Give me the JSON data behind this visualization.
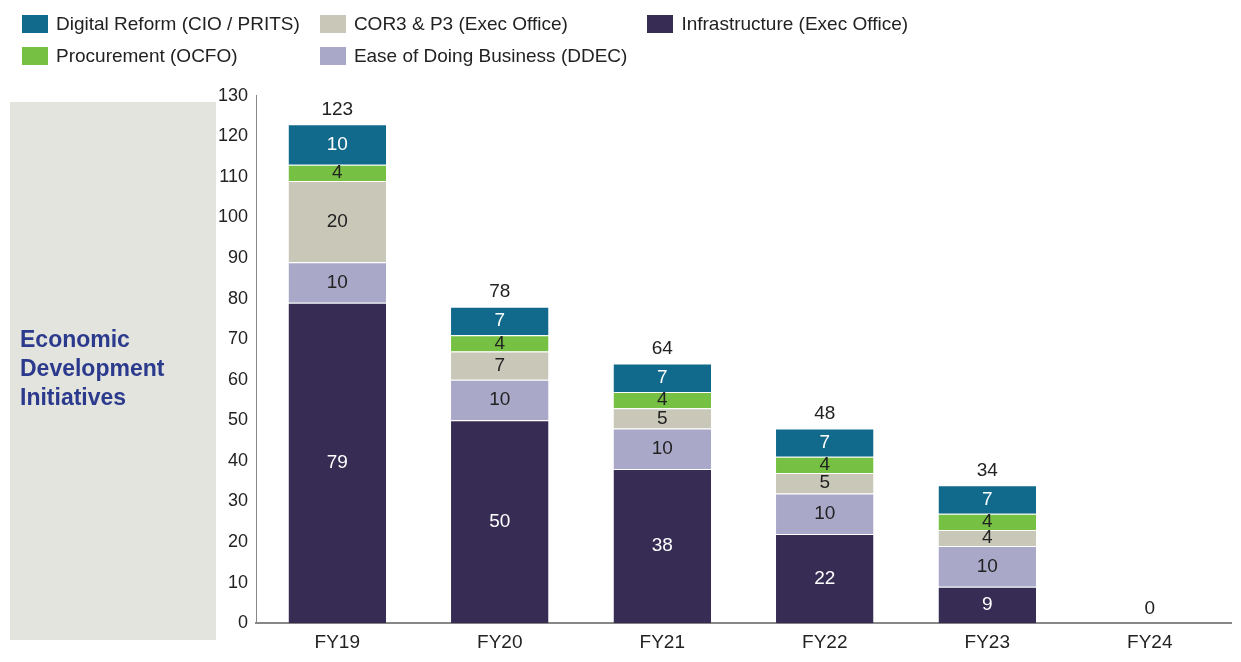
{
  "chart_data": {
    "type": "bar",
    "stacked": true,
    "ylabel": "Economic Development Initiatives",
    "categories": [
      "FY19",
      "FY20",
      "FY21",
      "FY22",
      "FY23",
      "FY24"
    ],
    "ylim": [
      0,
      130
    ],
    "yticks": [
      0,
      10,
      20,
      30,
      40,
      50,
      60,
      70,
      80,
      90,
      100,
      110,
      120,
      130
    ],
    "grid": false,
    "legend": "top",
    "series": [
      {
        "name": "Infrastructure (Exec Office)",
        "color": "#372c53",
        "values": [
          79,
          50,
          38,
          22,
          9,
          0
        ],
        "value_labels": [
          "79",
          "50",
          "38",
          "22",
          "9",
          null
        ]
      },
      {
        "name": "Ease of Doing Business (DDEC)",
        "color": "#aaa8c8",
        "values": [
          10,
          10,
          10,
          10,
          10,
          0
        ],
        "value_labels": [
          "10",
          "10",
          "10",
          "10",
          "10",
          null
        ]
      },
      {
        "name": "COR3 & P3 (Exec Office)",
        "color": "#c9c7b8",
        "values": [
          20,
          7,
          5,
          5,
          4,
          0
        ],
        "value_labels": [
          "20",
          "7",
          "5",
          "5",
          "4",
          null
        ]
      },
      {
        "name": "Procurement (OCFO)",
        "color": "#76c043",
        "values": [
          4,
          4,
          4,
          4,
          4,
          0
        ],
        "value_labels": [
          "4",
          "4",
          "4",
          "4",
          "4",
          null
        ]
      },
      {
        "name": "Digital Reform (CIO / PRITS)",
        "color": "#116a8c",
        "values": [
          10,
          7,
          7,
          7,
          7,
          0
        ],
        "value_labels": [
          "10",
          "7",
          "7",
          "7",
          "7",
          null
        ]
      }
    ],
    "totals": [
      "123",
      "78",
      "64",
      "48",
      "34",
      "0"
    ]
  }
}
